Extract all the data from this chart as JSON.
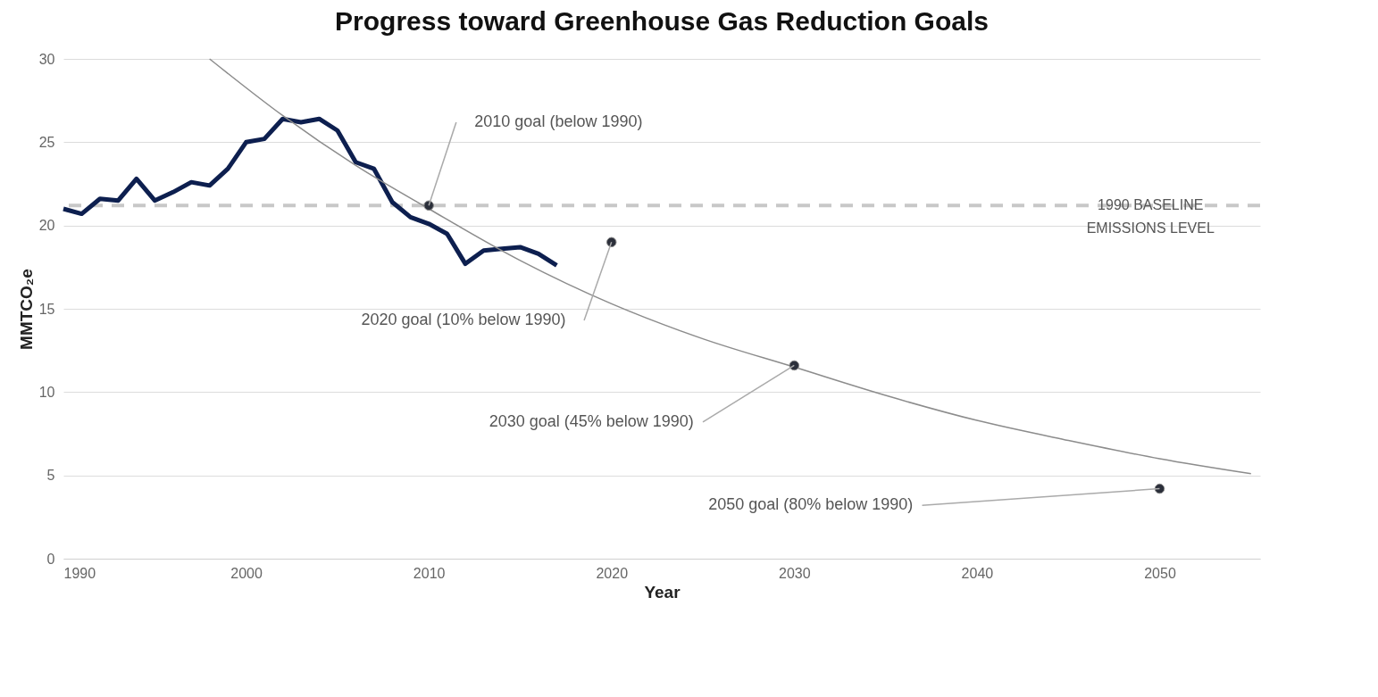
{
  "chart_data": {
    "type": "line",
    "title": "Progress toward Greenhouse Gas Reduction Goals",
    "xlabel": "Year",
    "ylabel": "MMTCO₂e",
    "xlim": [
      1990,
      2055.5
    ],
    "xticks": [
      1990,
      2000,
      2010,
      2020,
      2030,
      2040,
      2050
    ],
    "ylim": [
      0,
      30
    ],
    "yticks": [
      0,
      5,
      10,
      15,
      20,
      25,
      30
    ],
    "grid": "y",
    "series": [
      {
        "color": "#0d1f4f",
        "x": [
          1990,
          1991,
          1992,
          1993,
          1994,
          1995,
          1996,
          1997,
          1998,
          1999,
          2000,
          2001,
          2002,
          2003,
          2004,
          2005,
          2006,
          2007,
          2008,
          2009,
          2010,
          2011,
          2012,
          2013,
          2014,
          2015,
          2016,
          2017
        ],
        "values": [
          21.0,
          20.7,
          21.6,
          21.5,
          22.8,
          21.5,
          22.0,
          22.6,
          22.4,
          23.4,
          25.0,
          25.2,
          26.4,
          26.2,
          26.4,
          25.7,
          23.8,
          23.4,
          21.4,
          20.5,
          20.1,
          19.5,
          17.7,
          18.5,
          18.6,
          18.7,
          18.3,
          17.6
        ]
      },
      {
        "color": "#8c8c8c",
        "x": [
          1998,
          2002,
          2006,
          2010,
          2015,
          2020,
          2025,
          2030,
          2035,
          2040,
          2045,
          2050,
          2055
        ],
        "values": [
          30,
          26.6,
          23.6,
          21.0,
          17.9,
          15.3,
          13.2,
          11.5,
          9.8,
          8.3,
          7.1,
          6.0,
          5.1
        ]
      },
      {
        "type": "scatter",
        "color": "#2b2f3a",
        "marker": "circle",
        "x": [
          2010,
          2020,
          2030,
          2050
        ],
        "values": [
          21.2,
          19.0,
          11.6,
          4.2
        ]
      }
    ],
    "ref_lines": [
      {
        "axis": "y",
        "value": 21.2,
        "label": "1990 BASELINE EMISSIONS LEVEL",
        "color": "#c8c8c8",
        "line_style": "dashed"
      }
    ],
    "annotations": [
      {
        "text": "2010 goal (below 1990)",
        "x": 2010,
        "y": 21.2
      },
      {
        "text": "2020 goal (10% below 1990)",
        "x": 2020,
        "y": 19.0
      },
      {
        "text": "2030 goal (45% below 1990)",
        "x": 2030,
        "y": 11.6
      },
      {
        "text": "2050 goal (80% below 1990)",
        "x": 2050,
        "y": 4.2
      }
    ]
  }
}
